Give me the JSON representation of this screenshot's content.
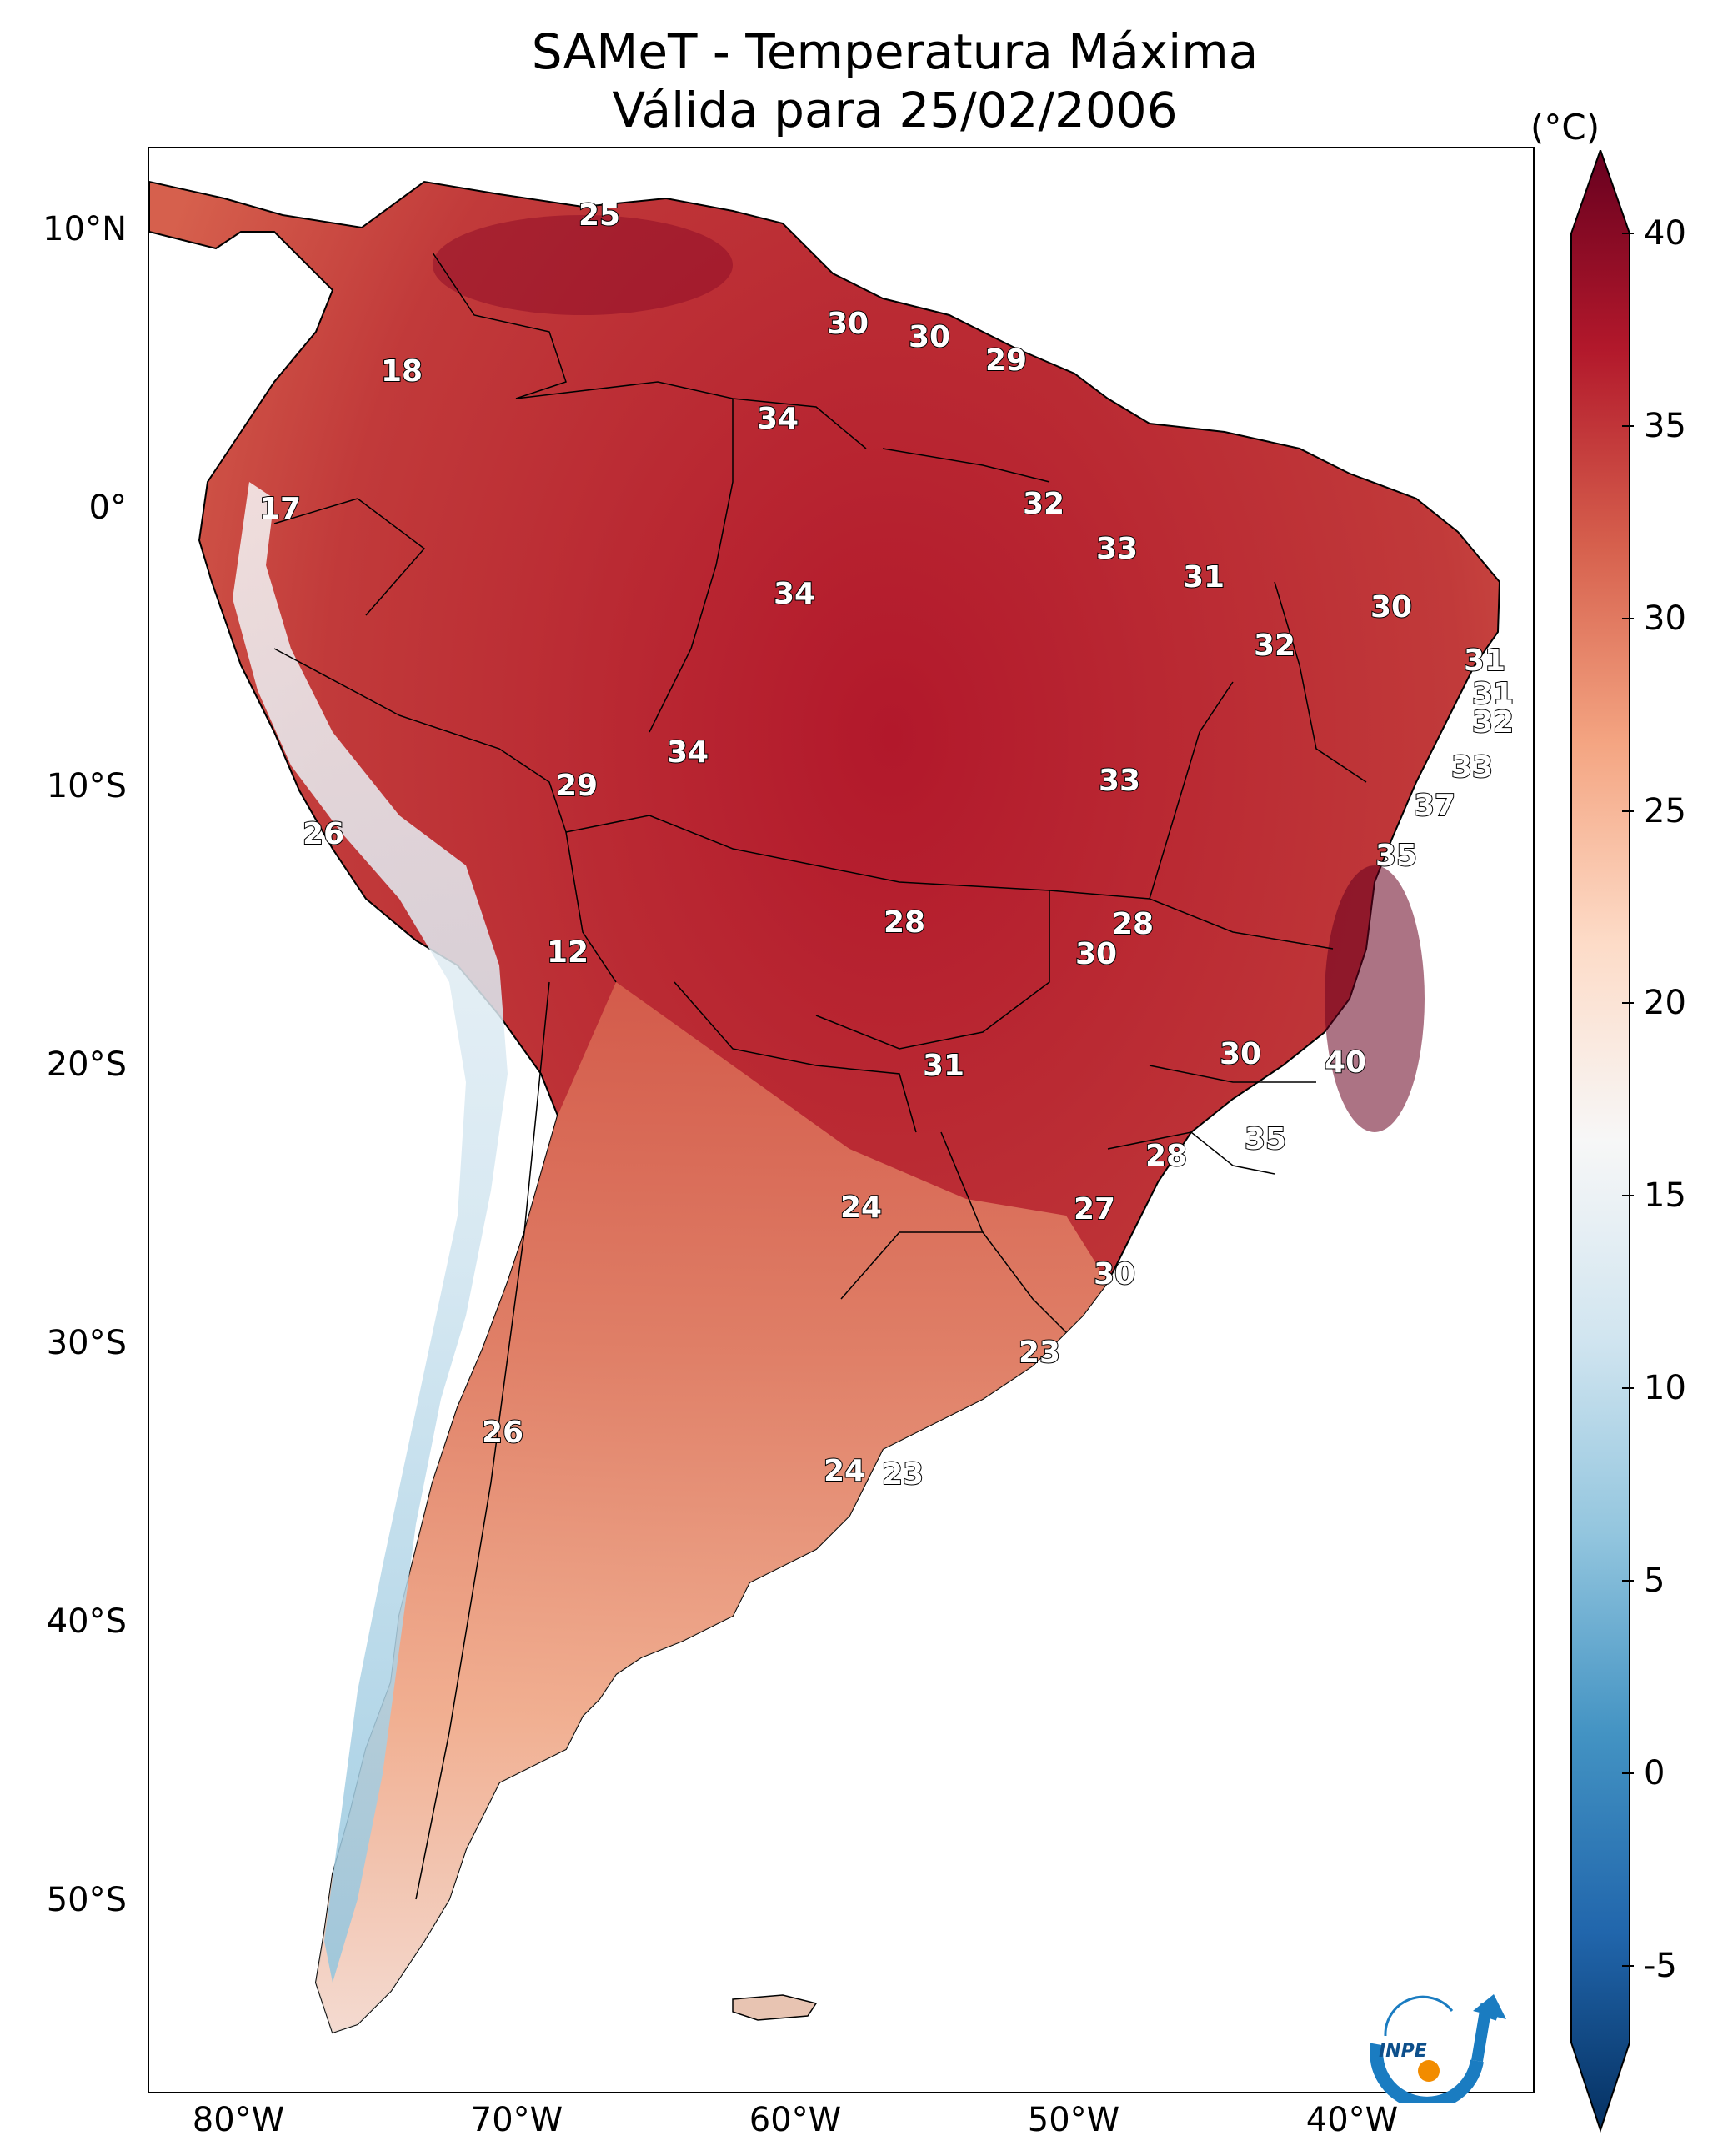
{
  "title": "SAMeT - Temperatura Máxima",
  "subtitle": "Válida para 25/02/2006",
  "colorbar": {
    "unit": "(°C)",
    "ticks": [
      "-5",
      "0",
      "5",
      "10",
      "15",
      "20",
      "25",
      "30",
      "35",
      "40"
    ],
    "range": [
      -7,
      40
    ],
    "colors": [
      "#053061",
      "#2166ac",
      "#4393c3",
      "#92c5de",
      "#d1e5f0",
      "#f7f7f7",
      "#fddbc7",
      "#f4a582",
      "#d6604d",
      "#b2182b",
      "#67001f"
    ]
  },
  "axes": {
    "lat_labels": [
      "10°N",
      "0°",
      "10°S",
      "20°S",
      "30°S",
      "40°S",
      "50°S"
    ],
    "lon_labels": [
      "80°W",
      "70°W",
      "60°W",
      "50°W",
      "40°W"
    ]
  },
  "contour_labels": [
    "25",
    "30",
    "30",
    "29",
    "18",
    "34",
    "17",
    "32",
    "33",
    "34",
    "31",
    "30",
    "32",
    "31",
    "31",
    "32",
    "34",
    "29",
    "33",
    "33",
    "37",
    "26",
    "35",
    "28",
    "28",
    "12",
    "30",
    "30",
    "40",
    "31",
    "35",
    "28",
    "24",
    "27",
    "30",
    "23",
    "26",
    "24",
    "23"
  ],
  "logo": {
    "text": "INPE"
  }
}
